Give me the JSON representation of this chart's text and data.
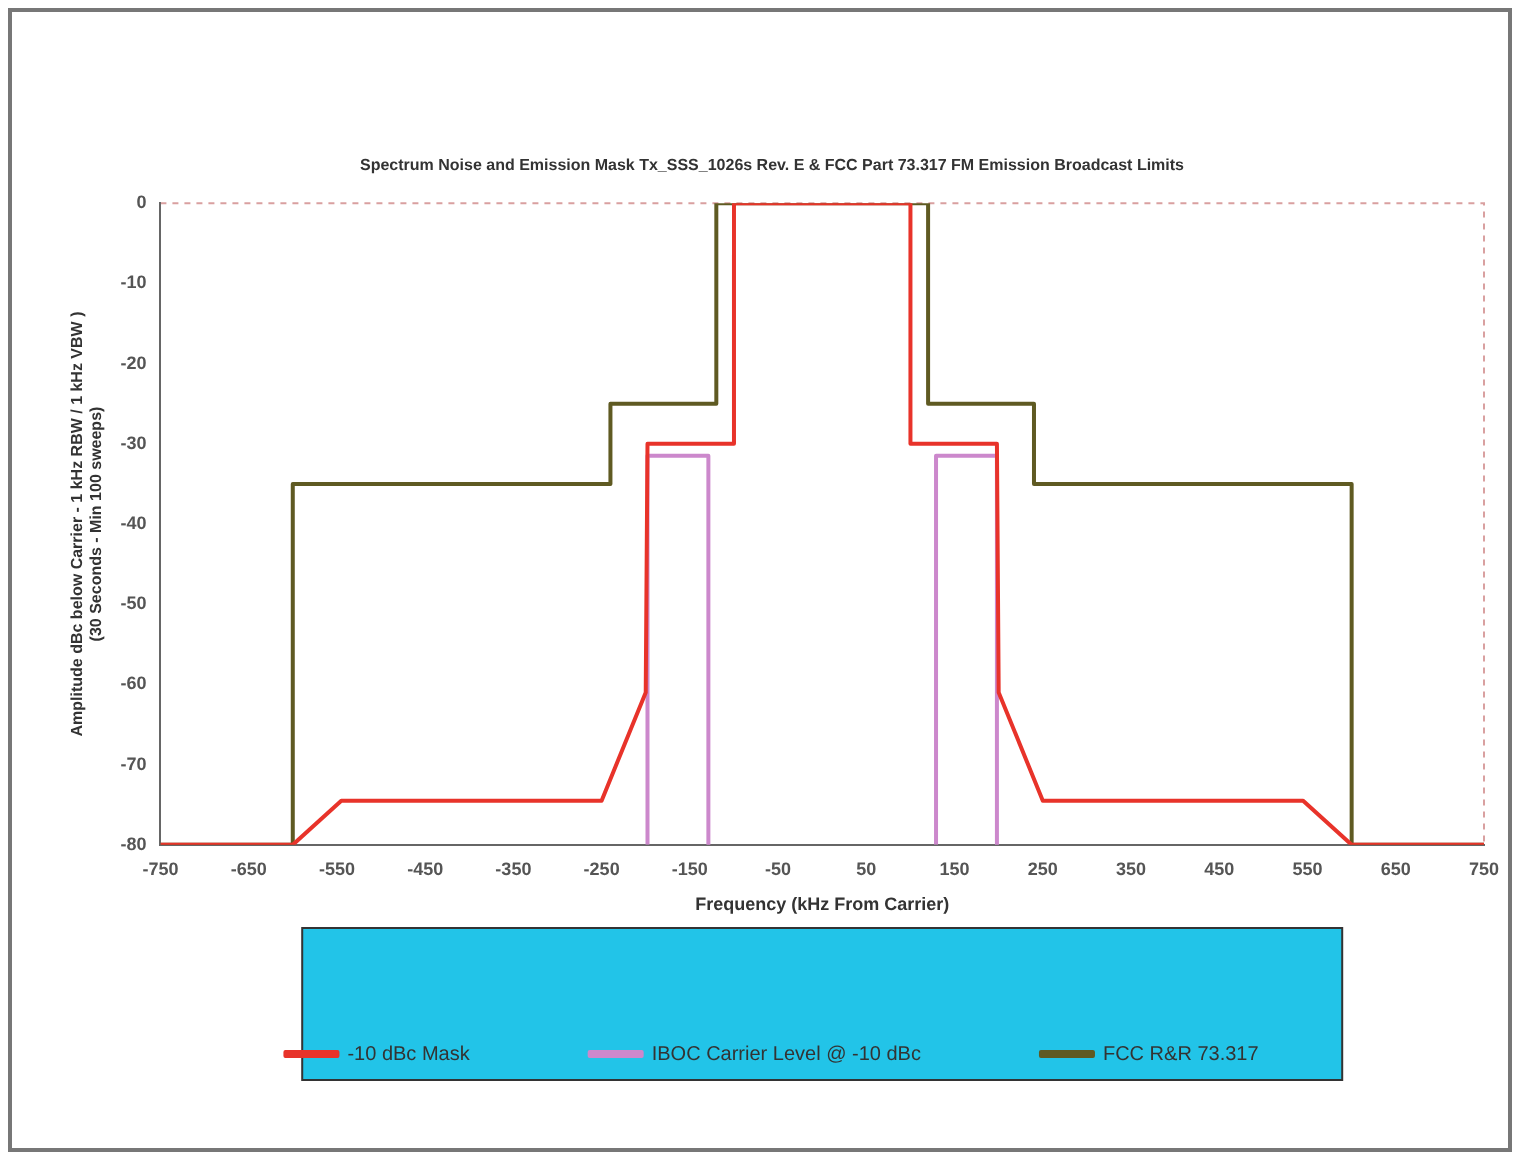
{
  "chart_data": {
    "type": "line",
    "title": "Spectrum Noise and Emission Mask Tx_SSS_1026s Rev. E & FCC Part 73.317 FM Emission Broadcast Limits",
    "xlabel": "Frequency (kHz From Carrier)",
    "ylabel": "Amplitude dBc below Carrier - 1 kHz RBW / 1 kHz VBW )\n(30 Seconds - Min 100 sweeps)",
    "series": [
      {
        "name": "-10 dBc Mask",
        "color": "#e8332a",
        "x": [
          -750,
          -600,
          -545,
          -250,
          -200,
          -198,
          -100,
          -100,
          100,
          100,
          198,
          200,
          250,
          545,
          600,
          750
        ],
        "values": [
          -80,
          -80,
          -74.5,
          -74.5,
          -61,
          -30,
          -30,
          0,
          0,
          -30,
          -30,
          -61,
          -74.5,
          -74.5,
          -80,
          -80
        ]
      },
      {
        "name": "IBOC Carrier Level @ -10 dBc",
        "color": "#cc88cc",
        "x": [
          -198,
          -198,
          -129,
          -129,
          0,
          129,
          129,
          198,
          198
        ],
        "values": [
          -80,
          -31.5,
          -31.5,
          -80,
          null,
          -80,
          -31.5,
          -31.5,
          -80
        ]
      },
      {
        "name": "FCC R&R 73.317",
        "color": "#5f5a22",
        "x": [
          -750,
          -600,
          -600,
          -240,
          -240,
          -120,
          -120,
          120,
          120,
          240,
          240,
          600,
          600,
          750
        ],
        "values": [
          -80,
          -80,
          -35,
          -35,
          -25,
          -25,
          0,
          0,
          -25,
          -25,
          -35,
          -35,
          -80,
          -80
        ]
      }
    ],
    "xlim": [
      -750,
      750
    ],
    "xticks": [
      -750,
      -650,
      -550,
      -450,
      -350,
      -250,
      -150,
      -50,
      50,
      150,
      250,
      350,
      450,
      550,
      650,
      750
    ],
    "ylim": [
      -80,
      0
    ],
    "yticks": [
      -80,
      -70,
      -60,
      -50,
      -40,
      -30,
      -20,
      -10,
      0
    ],
    "grid": false,
    "legend": "bottom",
    "marker": "none",
    "line_style": "solid"
  }
}
